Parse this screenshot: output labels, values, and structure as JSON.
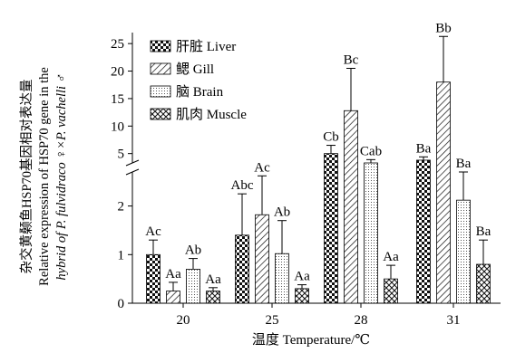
{
  "chart_data": {
    "type": "bar",
    "xlabel": "温度 Temperature/℃",
    "ylabel_lines": [
      "杂交黄颡鱼HSP70基因相对表达量",
      "Relative expression of HSP70 gene in the",
      "hybrid of P. fulvidraco ♀×P. vachelli ♂"
    ],
    "categories": [
      "20",
      "25",
      "28",
      "31"
    ],
    "axis_break": {
      "lower_ticks": [
        "0",
        "1",
        "2"
      ],
      "upper_ticks": [
        "5",
        "10",
        "15",
        "20",
        "25"
      ],
      "lower_range": [
        0,
        2.7
      ],
      "upper_range": [
        3.3,
        27
      ]
    },
    "series": [
      {
        "name": "肝脏 Liver",
        "pattern": "checker",
        "values": [
          1.0,
          1.4,
          5.0,
          3.8
        ],
        "errors": [
          0.3,
          0.85,
          1.5,
          0.6
        ],
        "labels": [
          "Ac",
          "Abc",
          "Cb",
          "Ba"
        ]
      },
      {
        "name": "鳃 Gill",
        "pattern": "diagonal",
        "values": [
          0.25,
          1.82,
          12.8,
          18.0
        ],
        "errors": [
          0.18,
          0.8,
          7.7,
          8.3
        ],
        "labels": [
          "Aa",
          "Ac",
          "Bc",
          "Bb"
        ]
      },
      {
        "name": "脑 Brain",
        "pattern": "dots",
        "values": [
          0.7,
          1.02,
          3.3,
          2.12
        ],
        "errors": [
          0.22,
          0.68,
          0.6,
          0.58
        ],
        "labels": [
          "Ab",
          "Ab",
          "Cab",
          "Ba"
        ]
      },
      {
        "name": "肌肉 Muscle",
        "pattern": "crosshatch",
        "values": [
          0.25,
          0.3,
          0.5,
          0.8
        ],
        "errors": [
          0.07,
          0.08,
          0.28,
          0.5
        ],
        "labels": [
          "Aa",
          "Aa",
          "Aa",
          "Ba"
        ]
      }
    ],
    "legend_position": "top-left",
    "grid": false
  }
}
